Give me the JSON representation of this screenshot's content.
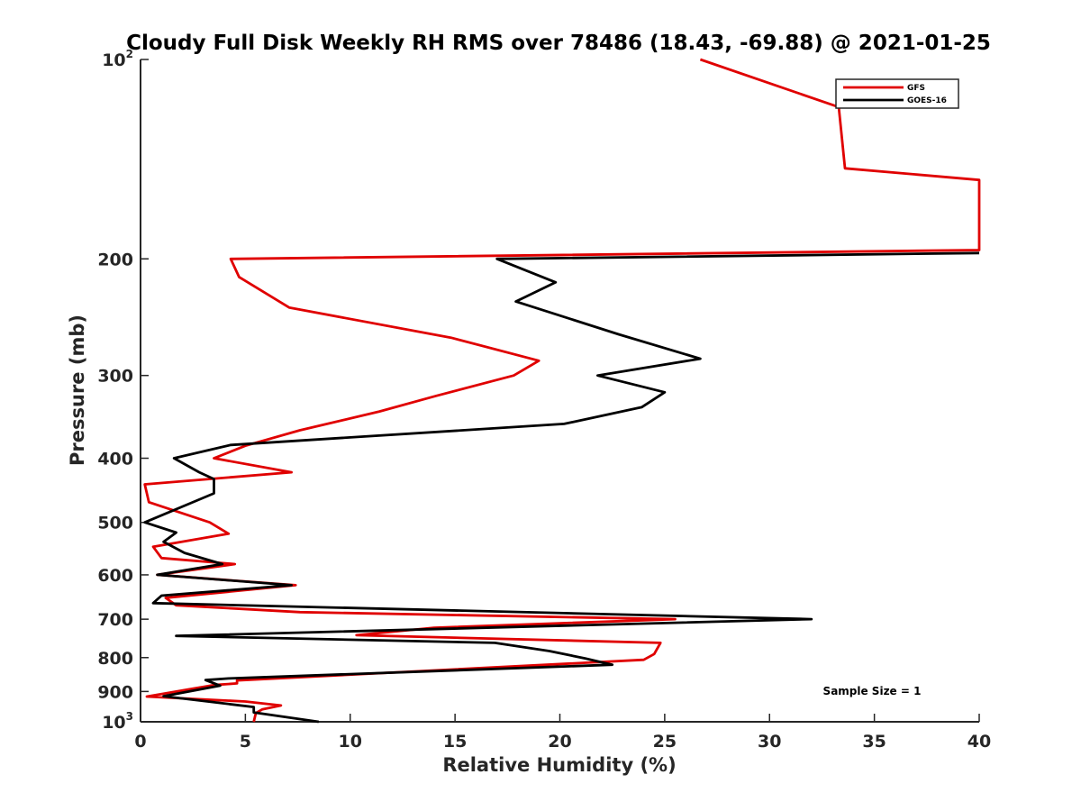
{
  "chart_data": {
    "type": "line",
    "title": "Cloudy Full Disk Weekly RH RMS over 78486 (18.43, -69.88) @ 2021-01-25",
    "xlabel": "Relative Humidity (%)",
    "ylabel": "Pressure (mb)",
    "xlim": [
      0,
      40
    ],
    "ylim": [
      100,
      1000
    ],
    "y_scale": "log",
    "y_reversed": true,
    "grid": false,
    "legend_position": "top-right",
    "x_ticks": [
      0,
      5,
      10,
      15,
      20,
      25,
      30,
      35,
      40
    ],
    "y_ticks": [
      {
        "value": 100,
        "label": "10",
        "sup": "2"
      },
      {
        "value": 200,
        "label": "200",
        "sup": ""
      },
      {
        "value": 300,
        "label": "300",
        "sup": ""
      },
      {
        "value": 400,
        "label": "400",
        "sup": ""
      },
      {
        "value": 500,
        "label": "500",
        "sup": ""
      },
      {
        "value": 600,
        "label": "600",
        "sup": ""
      },
      {
        "value": 700,
        "label": "700",
        "sup": ""
      },
      {
        "value": 800,
        "label": "800",
        "sup": ""
      },
      {
        "value": 900,
        "label": "900",
        "sup": ""
      },
      {
        "value": 1000,
        "label": "10",
        "sup": "3"
      }
    ],
    "series": [
      {
        "name": "GFS",
        "color": "#e00000",
        "points": [
          [
            26.7,
            100
          ],
          [
            33.3,
            118
          ],
          [
            33.6,
            146
          ],
          [
            40.0,
            152
          ],
          [
            40.0,
            194
          ],
          [
            4.3,
            200
          ],
          [
            4.7,
            213
          ],
          [
            7.1,
            237
          ],
          [
            14.8,
            263
          ],
          [
            19.0,
            285
          ],
          [
            17.8,
            300
          ],
          [
            14.1,
            322
          ],
          [
            11.4,
            340
          ],
          [
            7.6,
            363
          ],
          [
            5.0,
            383
          ],
          [
            3.5,
            400
          ],
          [
            7.2,
            420
          ],
          [
            0.2,
            438
          ],
          [
            0.4,
            466
          ],
          [
            3.3,
            500
          ],
          [
            4.2,
            520
          ],
          [
            0.6,
            544
          ],
          [
            1.0,
            566
          ],
          [
            4.5,
            578
          ],
          [
            0.8,
            600
          ],
          [
            7.4,
            622
          ],
          [
            1.2,
            650
          ],
          [
            1.7,
            667
          ],
          [
            7.6,
            683
          ],
          [
            25.5,
            700
          ],
          [
            14.0,
            721
          ],
          [
            10.3,
            740
          ],
          [
            24.8,
            760
          ],
          [
            24.5,
            790
          ],
          [
            24.0,
            806
          ],
          [
            4.6,
            866
          ],
          [
            4.6,
            875
          ],
          [
            3.5,
            880
          ],
          [
            0.3,
            916
          ],
          [
            5.0,
            932
          ],
          [
            6.7,
            945
          ],
          [
            5.8,
            958
          ],
          [
            5.5,
            970
          ],
          [
            5.4,
            1000
          ]
        ]
      },
      {
        "name": "GOES-16",
        "color": "#000000",
        "points": [
          [
            40.0,
            196
          ],
          [
            17.0,
            200
          ],
          [
            19.8,
            217
          ],
          [
            17.9,
            232
          ],
          [
            22.8,
            260
          ],
          [
            26.7,
            283
          ],
          [
            21.8,
            300
          ],
          [
            25.0,
            318
          ],
          [
            23.9,
            335
          ],
          [
            20.2,
            355
          ],
          [
            4.3,
            382
          ],
          [
            1.6,
            400
          ],
          [
            2.8,
            420
          ],
          [
            3.5,
            430
          ],
          [
            3.5,
            452
          ],
          [
            0.2,
            500
          ],
          [
            1.7,
            518
          ],
          [
            1.1,
            535
          ],
          [
            2.1,
            556
          ],
          [
            3.9,
            578
          ],
          [
            0.8,
            600
          ],
          [
            7.2,
            622
          ],
          [
            1.0,
            645
          ],
          [
            0.6,
            662
          ],
          [
            32.0,
            700
          ],
          [
            1.7,
            742
          ],
          [
            16.9,
            760
          ],
          [
            19.5,
            782
          ],
          [
            21.2,
            802
          ],
          [
            22.5,
            820
          ],
          [
            4.2,
            860
          ],
          [
            3.1,
            865
          ],
          [
            3.8,
            882
          ],
          [
            1.1,
            915
          ],
          [
            5.4,
            950
          ],
          [
            5.4,
            968
          ],
          [
            8.5,
            1000
          ]
        ]
      }
    ],
    "annotation": "Sample Size = 1"
  }
}
